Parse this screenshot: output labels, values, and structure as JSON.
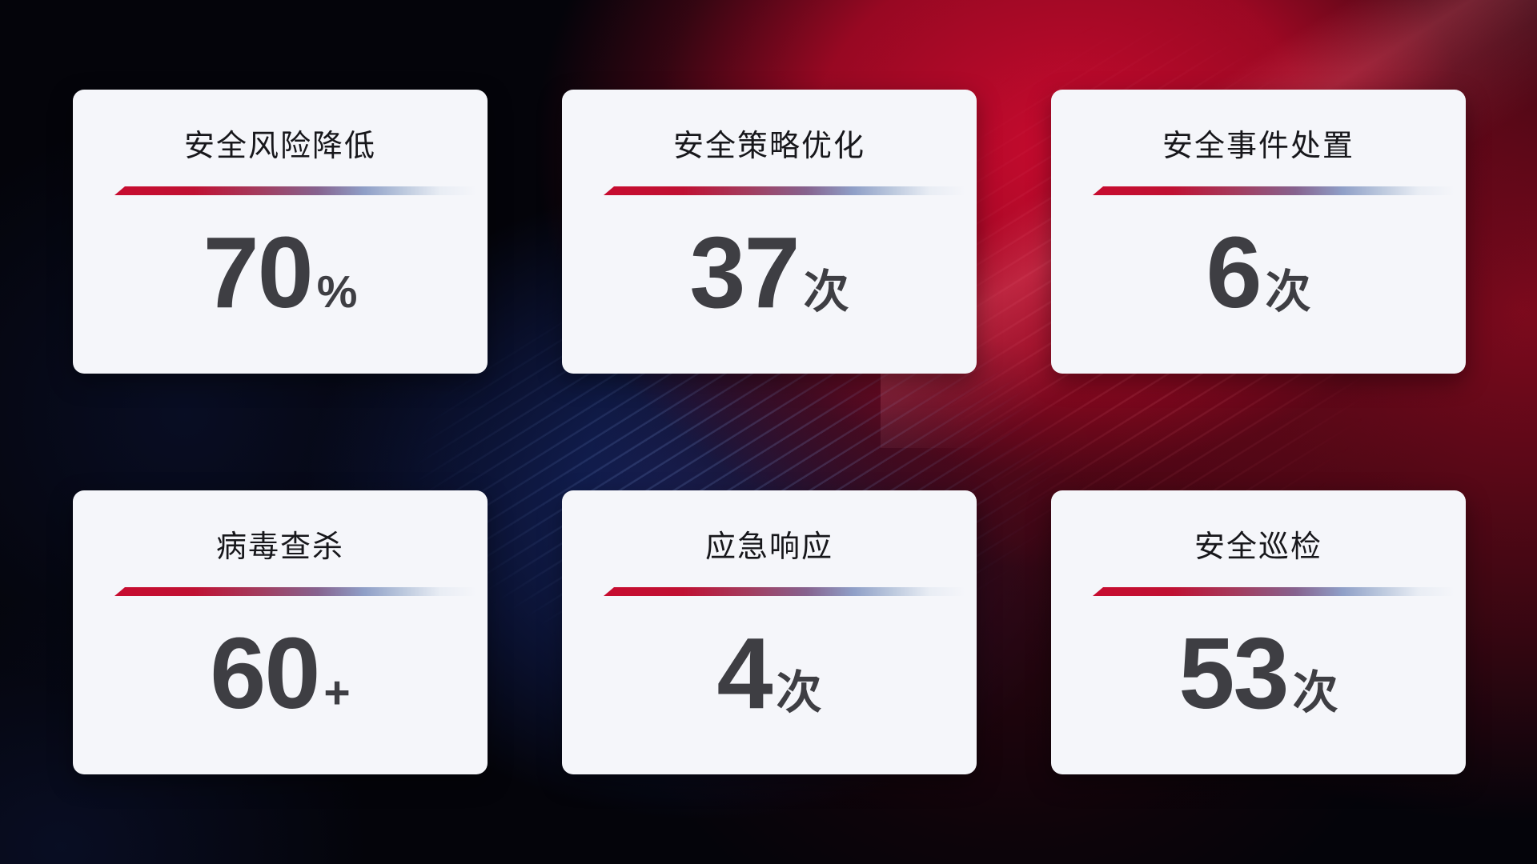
{
  "colors": {
    "accent_red": "#c70c2f",
    "accent_blue_fade": "#8f9fc7",
    "card_background": "#f5f6fa",
    "number_color": "#3e3e43",
    "title_color": "#17171b"
  },
  "cards": [
    {
      "title": "安全风险降低",
      "value": "70",
      "unit": "%"
    },
    {
      "title": "安全策略优化",
      "value": "37",
      "unit": "次"
    },
    {
      "title": "安全事件处置",
      "value": "6",
      "unit": "次"
    },
    {
      "title": "病毒查杀",
      "value": "60",
      "unit": "+"
    },
    {
      "title": "应急响应",
      "value": "4",
      "unit": "次"
    },
    {
      "title": "安全巡检",
      "value": "53",
      "unit": "次"
    }
  ]
}
